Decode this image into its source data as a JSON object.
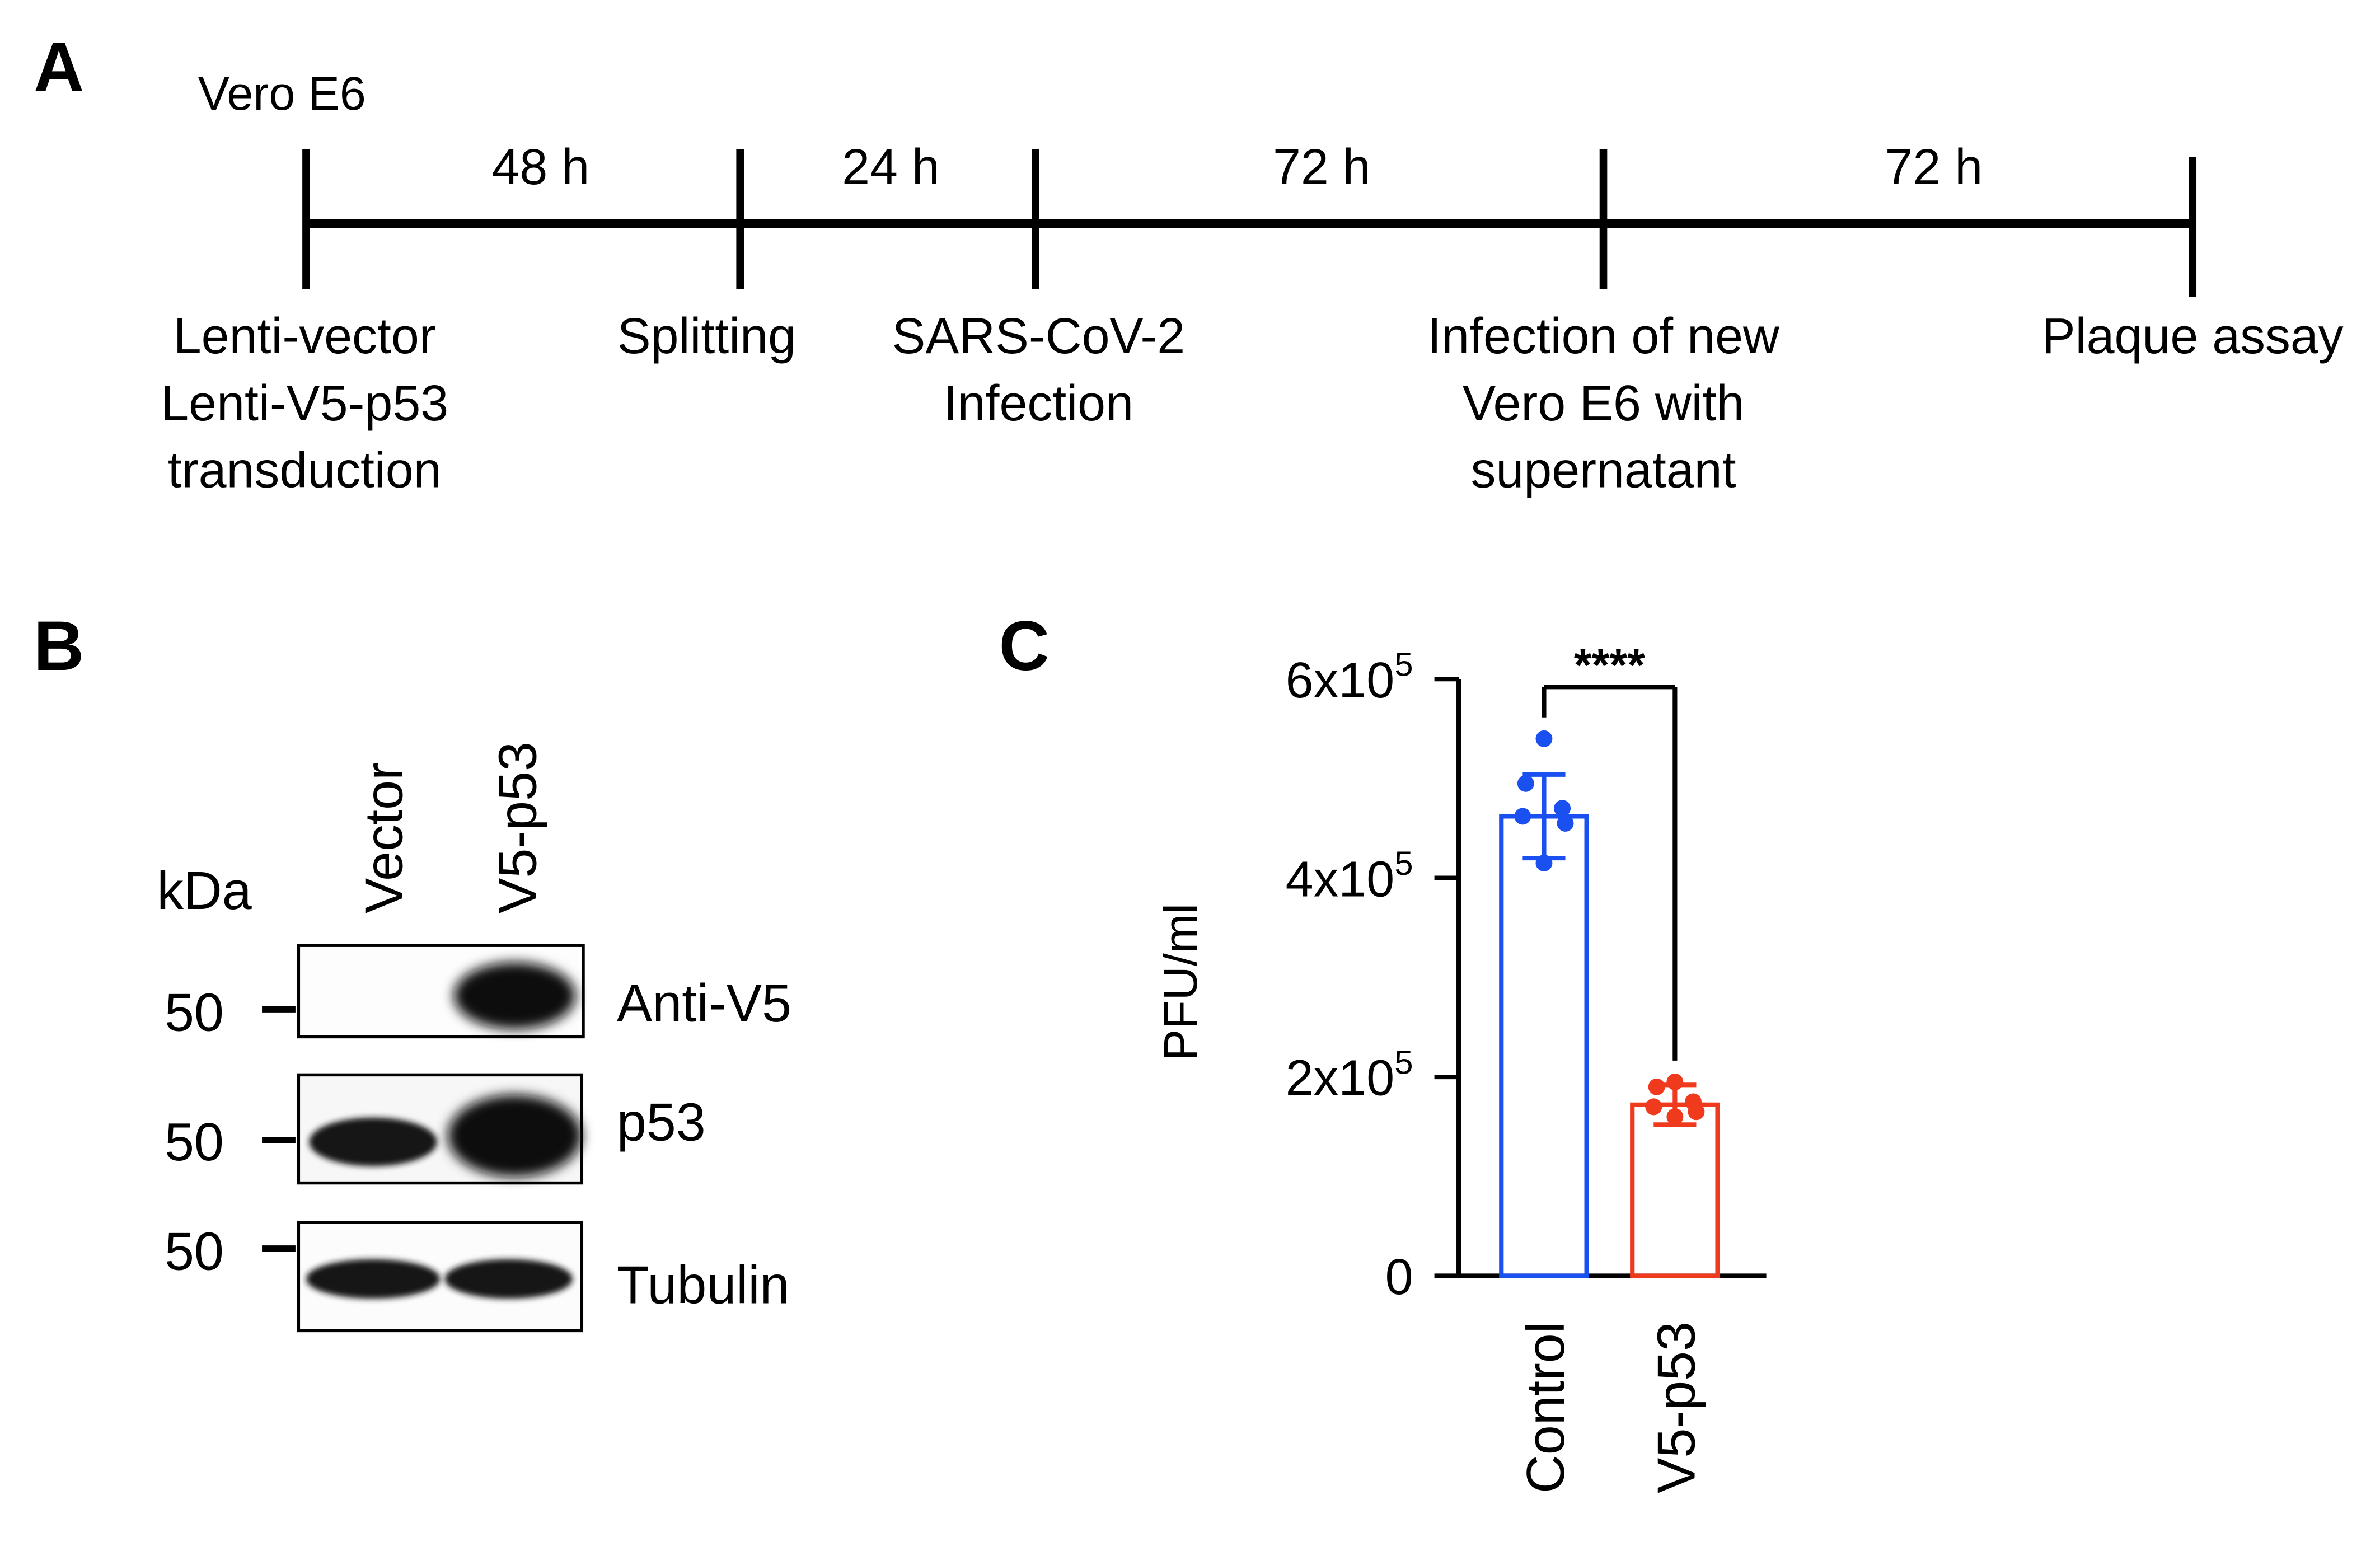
{
  "panel_a": {
    "letter": "A",
    "cell_line": "Vero E6",
    "intervals": [
      "48 h",
      "24 h",
      "72 h",
      "72 h"
    ],
    "events": [
      [
        "Lenti-vector",
        "Lenti-V5-p53",
        "transduction"
      ],
      [
        "Splitting"
      ],
      [
        "SARS-CoV-2",
        "Infection"
      ],
      [
        "Infection of new",
        "Vero E6 with",
        "supernatant"
      ],
      [
        "Plaque assay"
      ]
    ]
  },
  "panel_b": {
    "letter": "B",
    "kda_label": "kDa",
    "lanes": [
      "Vector",
      "V5-p53"
    ],
    "blots": [
      {
        "label": "Anti-V5",
        "marker": "50"
      },
      {
        "label": "p53",
        "marker": "50"
      },
      {
        "label": "Tubulin",
        "marker": "50"
      }
    ]
  },
  "panel_c": {
    "letter": "C",
    "significance": "****",
    "y_ticks": [
      {
        "value": 0,
        "label": "0",
        "exp": ""
      },
      {
        "value": 200000,
        "label": "2x10",
        "exp": "5"
      },
      {
        "value": 400000,
        "label": "4x10",
        "exp": "5"
      },
      {
        "value": 600000,
        "label": "6x10",
        "exp": "5"
      }
    ]
  },
  "chart_data": {
    "type": "bar",
    "ylabel": "PFU/ml",
    "ylim": [
      0,
      600000
    ],
    "categories": [
      "Control",
      "V5-p53"
    ],
    "values": [
      462000,
      172000
    ],
    "errors": [
      42000,
      20000
    ],
    "points": [
      [
        540000,
        495000,
        470000,
        462000,
        455000,
        415000
      ],
      [
        195000,
        190000,
        175000,
        170000,
        165000,
        160000
      ]
    ],
    "colors": [
      "#1a4ff0",
      "#f03a1e"
    ],
    "grid": false
  }
}
